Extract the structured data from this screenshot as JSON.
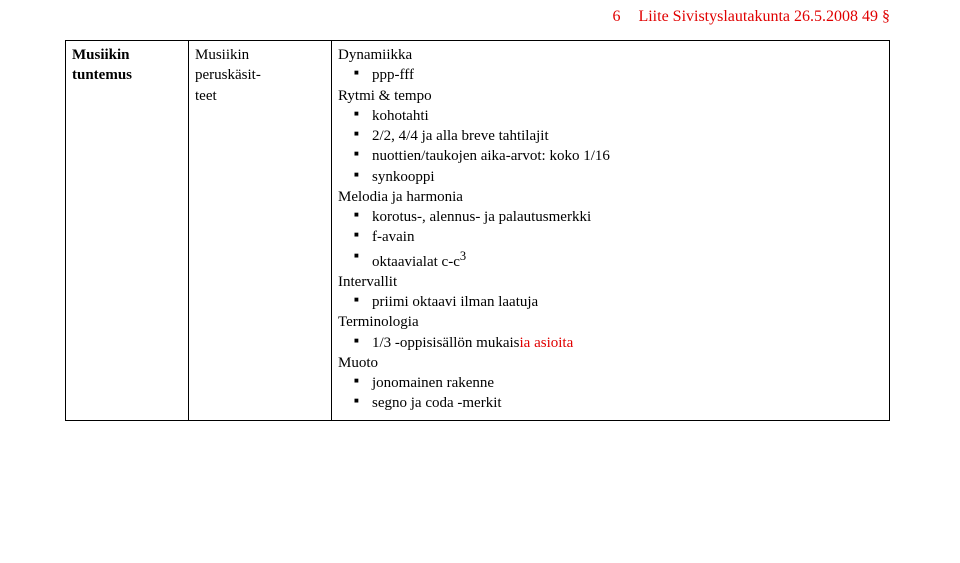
{
  "header": {
    "page_number": "6",
    "text": "Liite  Sivistyslautakunta 26.5.2008  49 §"
  },
  "table": {
    "col1": {
      "line1": "Musiikin",
      "line2": "tuntemus"
    },
    "col2": {
      "line1": "Musiikin",
      "line2": "peruskäsit-",
      "line3": "teet"
    },
    "col3": {
      "dynamiikka_label": "Dynamiikka",
      "dynamiikka_items": {
        "i0": "ppp-fff"
      },
      "rytmi_label": "Rytmi & tempo",
      "rytmi_items": {
        "i0": "kohotahti",
        "i1": "2/2, 4/4 ja alla breve tahtilajit",
        "i2": "nuottien/taukojen aika-arvot: koko 1/16",
        "i3": "synkooppi"
      },
      "melodia_label": "Melodia ja harmonia",
      "melodia_items": {
        "i0": "korotus-, alennus- ja palautusmerkki",
        "i1": "f-avain",
        "i2_prefix": "oktaavialat c-c",
        "i2_sup": "3"
      },
      "intervallit_label": "Intervallit",
      "intervallit_items": {
        "i0": "priimi oktaavi ilman laatuja"
      },
      "terminologia_label": "Terminologia",
      "terminologia_items": {
        "i0_black": "1/3 -oppisisällön mukais",
        "i0_red": "ia asioita"
      },
      "muoto_label": "Muoto",
      "muoto_items": {
        "i0": "jonomainen rakenne",
        "i1": "segno ja coda -merkit"
      }
    }
  }
}
